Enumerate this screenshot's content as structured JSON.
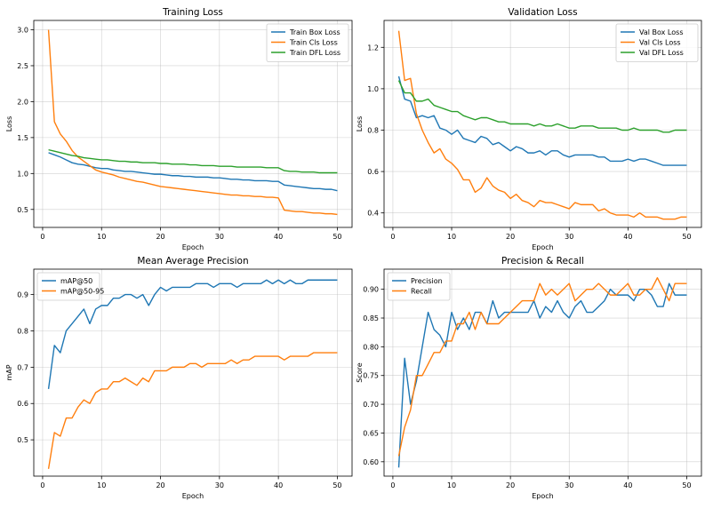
{
  "figure": {
    "colors": {
      "c0": "#1f77b4",
      "c1": "#ff7f0e",
      "c2": "#2ca02c",
      "grid": "#b0b0b0",
      "axis": "#000000"
    }
  },
  "chart_data": [
    {
      "type": "line",
      "title": "Training Loss",
      "xlabel": "Epoch",
      "ylabel": "Loss",
      "xlim": [
        -1.5,
        52.5
      ],
      "ylim": [
        0.25,
        3.13
      ],
      "xticks": [
        0,
        10,
        20,
        30,
        40,
        50
      ],
      "yticks": [
        0.5,
        1.0,
        1.5,
        2.0,
        2.5,
        3.0
      ],
      "ytick_labels": [
        "0.5",
        "1.0",
        "1.5",
        "2.0",
        "2.5",
        "3.0"
      ],
      "grid": true,
      "legend_position": "top-right",
      "x": [
        1,
        2,
        3,
        4,
        5,
        6,
        7,
        8,
        9,
        10,
        11,
        12,
        13,
        14,
        15,
        16,
        17,
        18,
        19,
        20,
        21,
        22,
        23,
        24,
        25,
        26,
        27,
        28,
        29,
        30,
        31,
        32,
        33,
        34,
        35,
        36,
        37,
        38,
        39,
        40,
        41,
        42,
        43,
        44,
        45,
        46,
        47,
        48,
        49,
        50
      ],
      "series": [
        {
          "name": "Train Box Loss",
          "color": "#1f77b4",
          "values": [
            1.29,
            1.26,
            1.23,
            1.19,
            1.15,
            1.13,
            1.12,
            1.1,
            1.08,
            1.07,
            1.07,
            1.05,
            1.04,
            1.03,
            1.03,
            1.02,
            1.01,
            1.0,
            0.99,
            0.99,
            0.98,
            0.97,
            0.97,
            0.96,
            0.96,
            0.95,
            0.95,
            0.95,
            0.94,
            0.94,
            0.93,
            0.92,
            0.92,
            0.91,
            0.91,
            0.9,
            0.9,
            0.9,
            0.89,
            0.89,
            0.84,
            0.83,
            0.82,
            0.81,
            0.8,
            0.79,
            0.79,
            0.78,
            0.78,
            0.76
          ]
        },
        {
          "name": "Train Cls Loss",
          "color": "#ff7f0e",
          "values": [
            3.0,
            1.72,
            1.55,
            1.45,
            1.32,
            1.23,
            1.17,
            1.11,
            1.05,
            1.02,
            1.0,
            0.98,
            0.95,
            0.93,
            0.91,
            0.89,
            0.88,
            0.86,
            0.84,
            0.82,
            0.81,
            0.8,
            0.79,
            0.78,
            0.77,
            0.76,
            0.75,
            0.74,
            0.73,
            0.72,
            0.71,
            0.7,
            0.7,
            0.69,
            0.69,
            0.68,
            0.68,
            0.67,
            0.67,
            0.66,
            0.49,
            0.48,
            0.47,
            0.47,
            0.46,
            0.45,
            0.45,
            0.44,
            0.44,
            0.43
          ]
        },
        {
          "name": "Train DFL Loss",
          "color": "#2ca02c",
          "values": [
            1.33,
            1.31,
            1.29,
            1.27,
            1.25,
            1.24,
            1.22,
            1.21,
            1.2,
            1.19,
            1.19,
            1.18,
            1.17,
            1.17,
            1.16,
            1.16,
            1.15,
            1.15,
            1.15,
            1.14,
            1.14,
            1.13,
            1.13,
            1.13,
            1.12,
            1.12,
            1.11,
            1.11,
            1.11,
            1.1,
            1.1,
            1.1,
            1.09,
            1.09,
            1.09,
            1.09,
            1.09,
            1.08,
            1.08,
            1.08,
            1.04,
            1.03,
            1.03,
            1.02,
            1.02,
            1.02,
            1.01,
            1.01,
            1.01,
            1.01
          ]
        }
      ]
    },
    {
      "type": "line",
      "title": "Validation Loss",
      "xlabel": "Epoch",
      "ylabel": "Loss",
      "xlim": [
        -1.5,
        52.5
      ],
      "ylim": [
        0.33,
        1.33
      ],
      "xticks": [
        0,
        10,
        20,
        30,
        40,
        50
      ],
      "yticks": [
        0.4,
        0.6,
        0.8,
        1.0,
        1.2
      ],
      "ytick_labels": [
        "0.4",
        "0.6",
        "0.8",
        "1.0",
        "1.2"
      ],
      "grid": true,
      "legend_position": "top-right",
      "x": [
        1,
        2,
        3,
        4,
        5,
        6,
        7,
        8,
        9,
        10,
        11,
        12,
        13,
        14,
        15,
        16,
        17,
        18,
        19,
        20,
        21,
        22,
        23,
        24,
        25,
        26,
        27,
        28,
        29,
        30,
        31,
        32,
        33,
        34,
        35,
        36,
        37,
        38,
        39,
        40,
        41,
        42,
        43,
        44,
        45,
        46,
        47,
        48,
        49,
        50
      ],
      "series": [
        {
          "name": "Val Box Loss",
          "color": "#1f77b4",
          "values": [
            1.06,
            0.95,
            0.94,
            0.86,
            0.87,
            0.86,
            0.87,
            0.81,
            0.8,
            0.78,
            0.8,
            0.76,
            0.75,
            0.74,
            0.77,
            0.76,
            0.73,
            0.74,
            0.72,
            0.7,
            0.72,
            0.71,
            0.69,
            0.69,
            0.7,
            0.68,
            0.7,
            0.7,
            0.68,
            0.67,
            0.68,
            0.68,
            0.68,
            0.68,
            0.67,
            0.67,
            0.65,
            0.65,
            0.65,
            0.66,
            0.65,
            0.66,
            0.66,
            0.65,
            0.64,
            0.63,
            0.63,
            0.63,
            0.63,
            0.63
          ]
        },
        {
          "name": "Val Cls Loss",
          "color": "#ff7f0e",
          "values": [
            1.28,
            1.04,
            1.05,
            0.88,
            0.8,
            0.74,
            0.69,
            0.71,
            0.66,
            0.64,
            0.61,
            0.56,
            0.56,
            0.5,
            0.52,
            0.57,
            0.53,
            0.51,
            0.5,
            0.47,
            0.49,
            0.46,
            0.45,
            0.43,
            0.46,
            0.45,
            0.45,
            0.44,
            0.43,
            0.42,
            0.45,
            0.44,
            0.44,
            0.44,
            0.41,
            0.42,
            0.4,
            0.39,
            0.39,
            0.39,
            0.38,
            0.4,
            0.38,
            0.38,
            0.38,
            0.37,
            0.37,
            0.37,
            0.38,
            0.38
          ]
        },
        {
          "name": "Val DFL Loss",
          "color": "#2ca02c",
          "values": [
            1.04,
            0.98,
            0.98,
            0.94,
            0.94,
            0.95,
            0.92,
            0.91,
            0.9,
            0.89,
            0.89,
            0.87,
            0.86,
            0.85,
            0.86,
            0.86,
            0.85,
            0.84,
            0.84,
            0.83,
            0.83,
            0.83,
            0.83,
            0.82,
            0.83,
            0.82,
            0.82,
            0.83,
            0.82,
            0.81,
            0.81,
            0.82,
            0.82,
            0.82,
            0.81,
            0.81,
            0.81,
            0.81,
            0.8,
            0.8,
            0.81,
            0.8,
            0.8,
            0.8,
            0.8,
            0.79,
            0.79,
            0.8,
            0.8,
            0.8
          ]
        }
      ]
    },
    {
      "type": "line",
      "title": "Mean Average Precision",
      "xlabel": "Epoch",
      "ylabel": "mAP",
      "xlim": [
        -1.5,
        52.5
      ],
      "ylim": [
        0.4,
        0.97
      ],
      "xticks": [
        0,
        10,
        20,
        30,
        40,
        50
      ],
      "yticks": [
        0.5,
        0.6,
        0.7,
        0.8,
        0.9
      ],
      "ytick_labels": [
        "0.5",
        "0.6",
        "0.7",
        "0.8",
        "0.9"
      ],
      "grid": true,
      "legend_position": "top-left",
      "x": [
        1,
        2,
        3,
        4,
        5,
        6,
        7,
        8,
        9,
        10,
        11,
        12,
        13,
        14,
        15,
        16,
        17,
        18,
        19,
        20,
        21,
        22,
        23,
        24,
        25,
        26,
        27,
        28,
        29,
        30,
        31,
        32,
        33,
        34,
        35,
        36,
        37,
        38,
        39,
        40,
        41,
        42,
        43,
        44,
        45,
        46,
        47,
        48,
        49,
        50
      ],
      "series": [
        {
          "name": "mAP@50",
          "color": "#1f77b4",
          "values": [
            0.64,
            0.76,
            0.74,
            0.8,
            0.82,
            0.84,
            0.86,
            0.82,
            0.86,
            0.87,
            0.87,
            0.89,
            0.89,
            0.9,
            0.9,
            0.89,
            0.9,
            0.87,
            0.9,
            0.92,
            0.91,
            0.92,
            0.92,
            0.92,
            0.92,
            0.93,
            0.93,
            0.93,
            0.92,
            0.93,
            0.93,
            0.93,
            0.92,
            0.93,
            0.93,
            0.93,
            0.93,
            0.94,
            0.93,
            0.94,
            0.93,
            0.94,
            0.93,
            0.93,
            0.94,
            0.94,
            0.94,
            0.94,
            0.94,
            0.94
          ]
        },
        {
          "name": "mAP@50-95",
          "color": "#ff7f0e",
          "values": [
            0.42,
            0.52,
            0.51,
            0.56,
            0.56,
            0.59,
            0.61,
            0.6,
            0.63,
            0.64,
            0.64,
            0.66,
            0.66,
            0.67,
            0.66,
            0.65,
            0.67,
            0.66,
            0.69,
            0.69,
            0.69,
            0.7,
            0.7,
            0.7,
            0.71,
            0.71,
            0.7,
            0.71,
            0.71,
            0.71,
            0.71,
            0.72,
            0.71,
            0.72,
            0.72,
            0.73,
            0.73,
            0.73,
            0.73,
            0.73,
            0.72,
            0.73,
            0.73,
            0.73,
            0.73,
            0.74,
            0.74,
            0.74,
            0.74,
            0.74
          ]
        }
      ]
    },
    {
      "type": "line",
      "title": "Precision & Recall",
      "xlabel": "Epoch",
      "ylabel": "Score",
      "xlim": [
        -1.5,
        52.5
      ],
      "ylim": [
        0.575,
        0.935
      ],
      "xticks": [
        0,
        10,
        20,
        30,
        40,
        50
      ],
      "yticks": [
        0.6,
        0.65,
        0.7,
        0.75,
        0.8,
        0.85,
        0.9
      ],
      "ytick_labels": [
        "0.60",
        "0.65",
        "0.70",
        "0.75",
        "0.80",
        "0.85",
        "0.90"
      ],
      "grid": true,
      "legend_position": "top-left",
      "x": [
        1,
        2,
        3,
        4,
        5,
        6,
        7,
        8,
        9,
        10,
        11,
        12,
        13,
        14,
        15,
        16,
        17,
        18,
        19,
        20,
        21,
        22,
        23,
        24,
        25,
        26,
        27,
        28,
        29,
        30,
        31,
        32,
        33,
        34,
        35,
        36,
        37,
        38,
        39,
        40,
        41,
        42,
        43,
        44,
        45,
        46,
        47,
        48,
        49,
        50
      ],
      "series": [
        {
          "name": "Precision",
          "color": "#1f77b4",
          "values": [
            0.59,
            0.78,
            0.7,
            0.74,
            0.8,
            0.86,
            0.83,
            0.82,
            0.8,
            0.86,
            0.83,
            0.85,
            0.83,
            0.86,
            0.86,
            0.84,
            0.88,
            0.85,
            0.86,
            0.86,
            0.86,
            0.86,
            0.86,
            0.88,
            0.85,
            0.87,
            0.86,
            0.88,
            0.86,
            0.85,
            0.87,
            0.88,
            0.86,
            0.86,
            0.87,
            0.88,
            0.9,
            0.89,
            0.89,
            0.89,
            0.88,
            0.9,
            0.9,
            0.89,
            0.87,
            0.87,
            0.91,
            0.89,
            0.89,
            0.89
          ]
        },
        {
          "name": "Recall",
          "color": "#ff7f0e",
          "values": [
            0.61,
            0.66,
            0.69,
            0.75,
            0.75,
            0.77,
            0.79,
            0.79,
            0.81,
            0.81,
            0.84,
            0.84,
            0.86,
            0.83,
            0.86,
            0.84,
            0.84,
            0.84,
            0.85,
            0.86,
            0.87,
            0.88,
            0.88,
            0.88,
            0.91,
            0.89,
            0.9,
            0.89,
            0.9,
            0.91,
            0.88,
            0.89,
            0.9,
            0.9,
            0.91,
            0.9,
            0.89,
            0.89,
            0.9,
            0.91,
            0.89,
            0.89,
            0.9,
            0.9,
            0.92,
            0.9,
            0.88,
            0.91,
            0.91,
            0.91
          ]
        }
      ]
    }
  ]
}
